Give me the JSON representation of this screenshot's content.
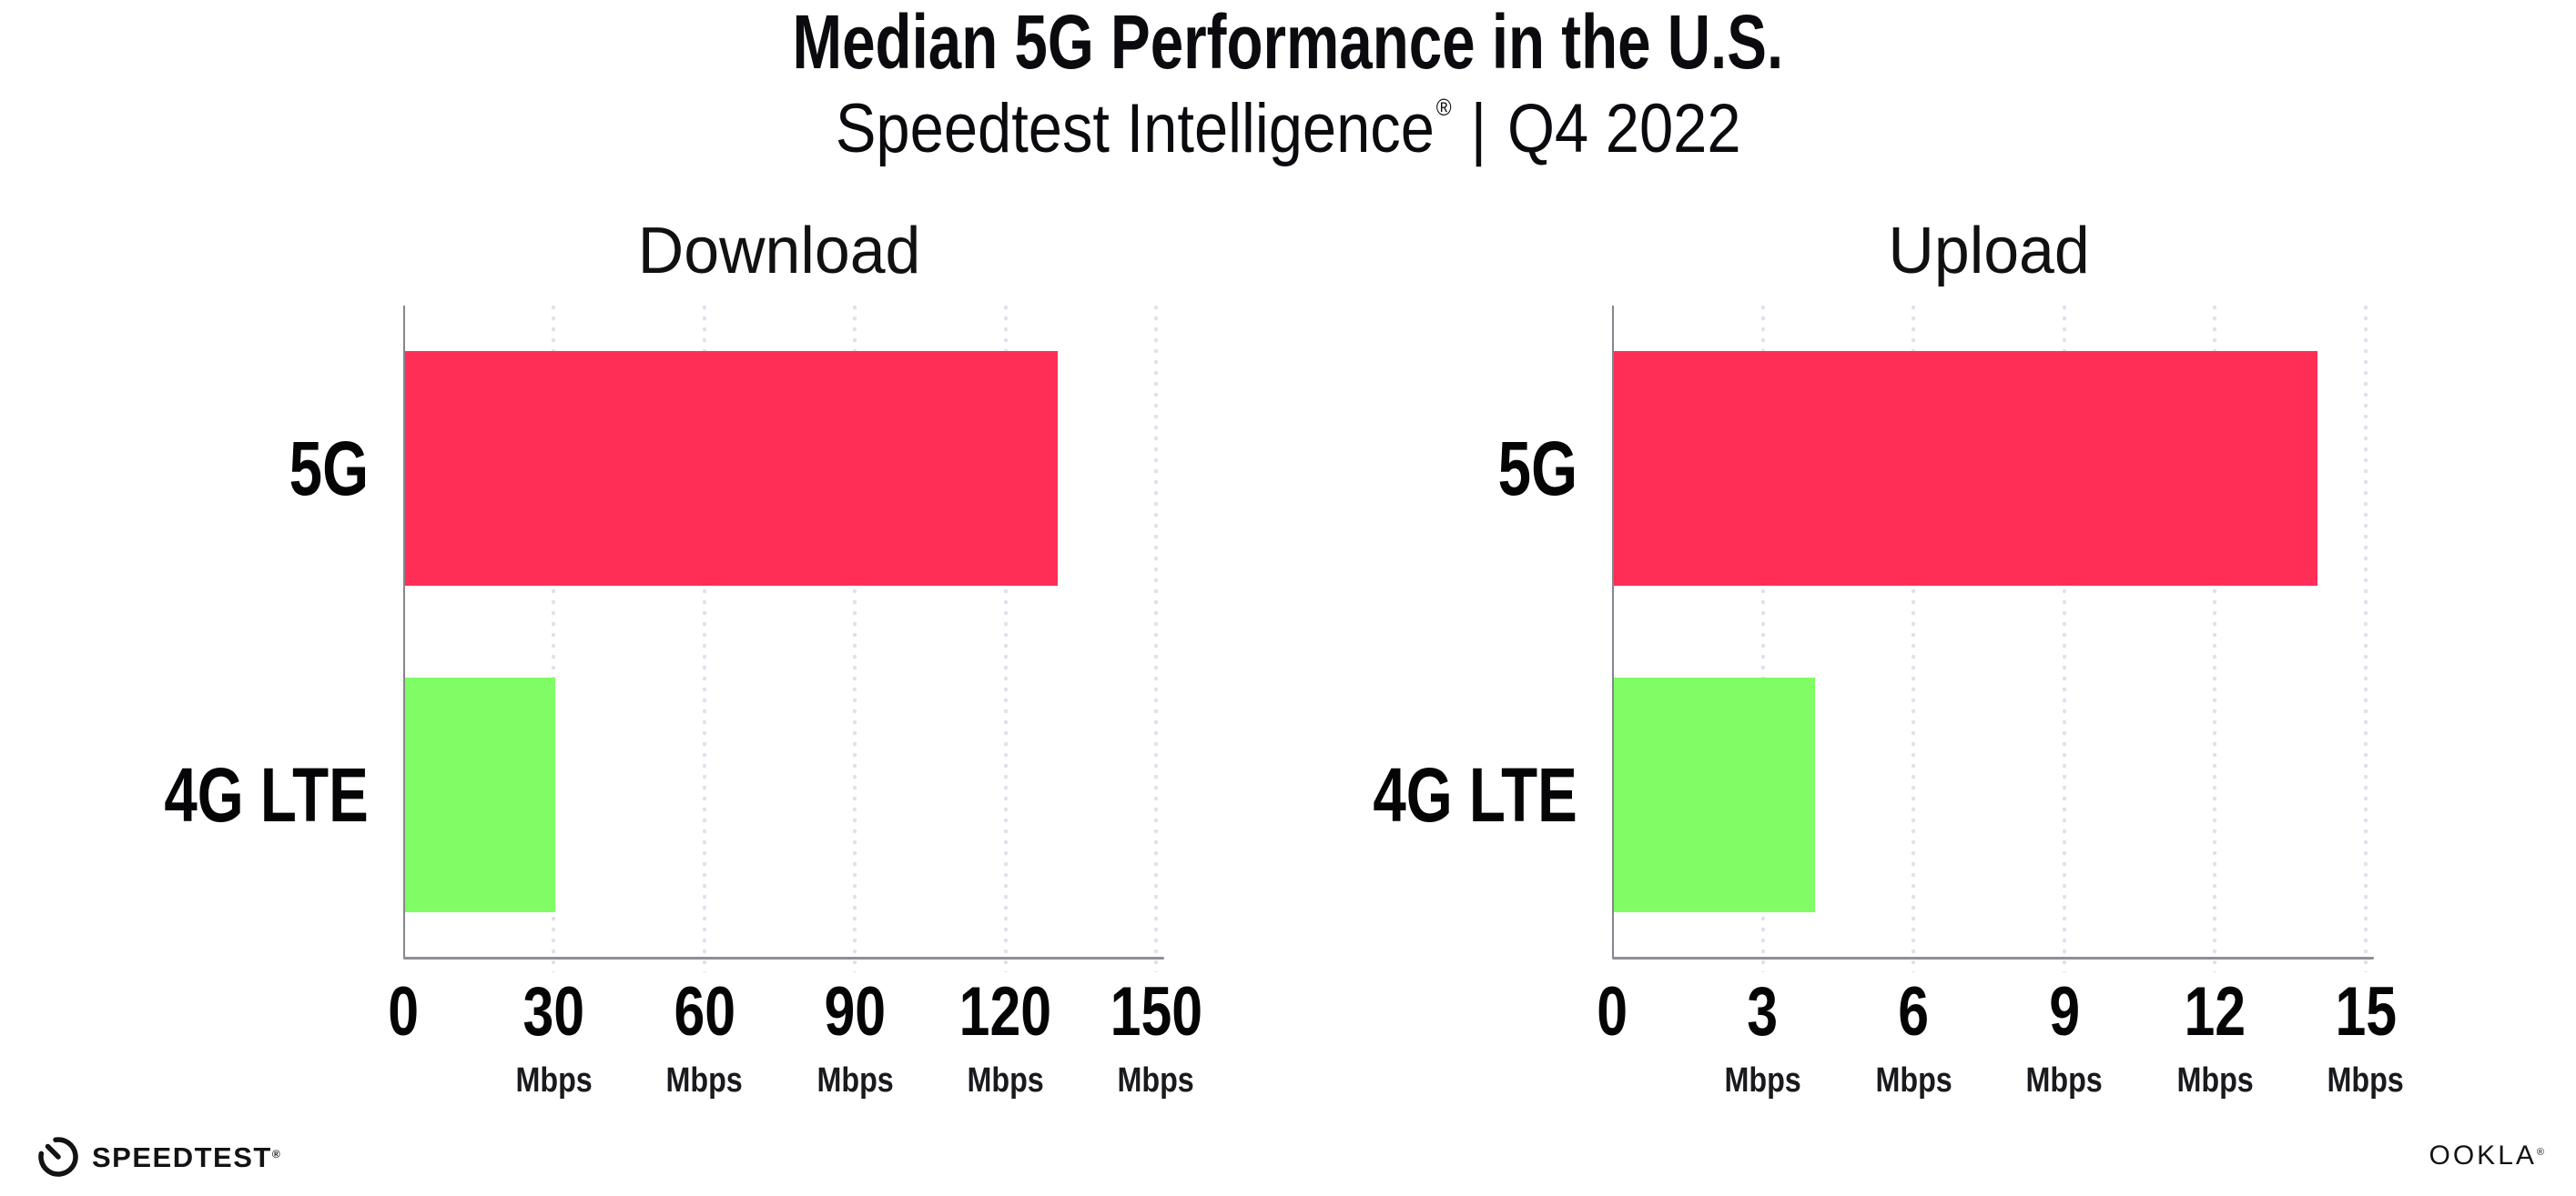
{
  "header": {
    "title": "Median 5G Performance in the U.S.",
    "subtitle_brand": "Speedtest Intelligence",
    "subtitle_registered": "®",
    "subtitle_separator": "|",
    "subtitle_period": "Q4 2022"
  },
  "footer": {
    "speedtest_label": "SPEEDTEST",
    "speedtest_mark": "®",
    "ookla_label": "OOKLA",
    "ookla_mark": "®"
  },
  "colors": {
    "bar_5g": "#FF2E56",
    "bar_4g_lte": "#80FC64",
    "gridline": "#DFE1EC",
    "axis_line": "#8F8F97",
    "text": "#0B0B0F"
  },
  "chart_data": {
    "type": "bar",
    "orientation": "horizontal",
    "title": "Median 5G Performance in the U.S.",
    "subtitle": "Speedtest Intelligence® | Q4 2022",
    "categories": [
      "5G",
      "4G LTE"
    ],
    "unit": "Mbps",
    "grid": "dotted vertical gridlines",
    "legend": "none",
    "series_colors": {
      "5G": "#FF2E56",
      "4G LTE": "#80FC64"
    },
    "panels": [
      {
        "title": "Download",
        "values": {
          "5G": 130,
          "4G LTE": 30
        },
        "xlim": [
          0,
          150
        ],
        "ticks": [
          0,
          30,
          60,
          90,
          120,
          150
        ]
      },
      {
        "title": "Upload",
        "values": {
          "5G": 14,
          "4G LTE": 4
        },
        "xlim": [
          0,
          15
        ],
        "ticks": [
          0,
          3,
          6,
          9,
          12,
          15
        ]
      }
    ]
  }
}
